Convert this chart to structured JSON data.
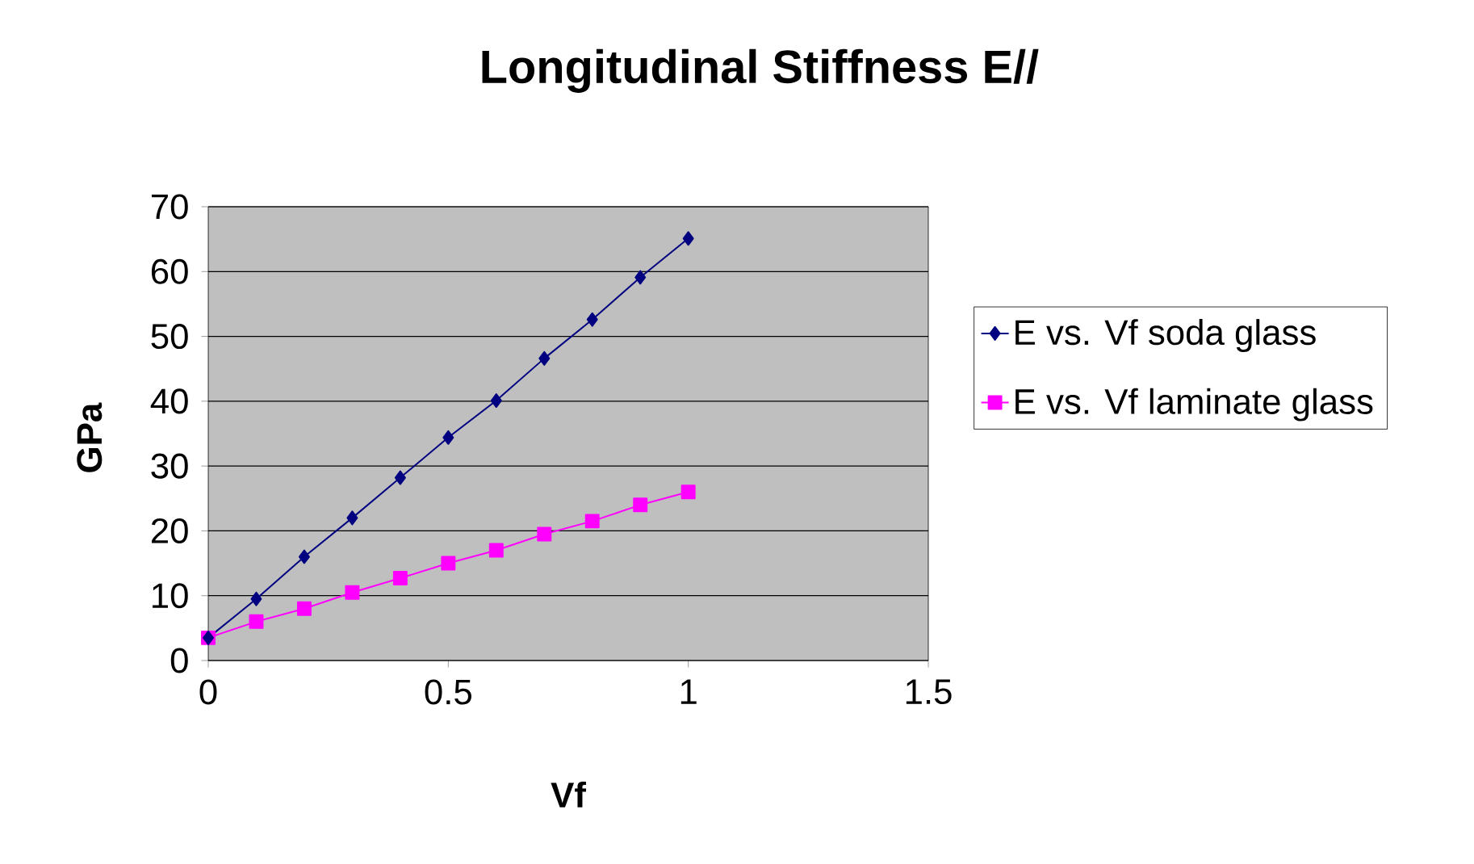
{
  "chart_data": {
    "type": "line",
    "title": "Longitudinal Stiffness E//",
    "xlabel": "Vf",
    "ylabel": "GPa",
    "x": [
      0,
      0.1,
      0.2,
      0.3,
      0.4,
      0.5,
      0.6,
      0.7,
      0.8,
      0.9,
      1
    ],
    "series": [
      {
        "name": "E vs. Vf soda glass",
        "color": "#000080",
        "marker": "diamond",
        "values": [
          3.5,
          9.5,
          16,
          22,
          28.2,
          34.4,
          40.1,
          46.6,
          52.6,
          59.1,
          65.1
        ]
      },
      {
        "name": "E vs. Vf laminate glass",
        "color": "#ff00ff",
        "marker": "square",
        "values": [
          3.5,
          6,
          8,
          10.5,
          12.7,
          15,
          17,
          19.5,
          21.5,
          24,
          26
        ]
      }
    ],
    "xlim": [
      0,
      1.5
    ],
    "xticks": [
      0,
      0.5,
      1,
      1.5
    ],
    "ylim": [
      0,
      70
    ],
    "yticks": [
      0,
      10,
      20,
      30,
      40,
      50,
      60,
      70
    ],
    "grid": "y",
    "legend": "right",
    "line_style": "solid"
  }
}
